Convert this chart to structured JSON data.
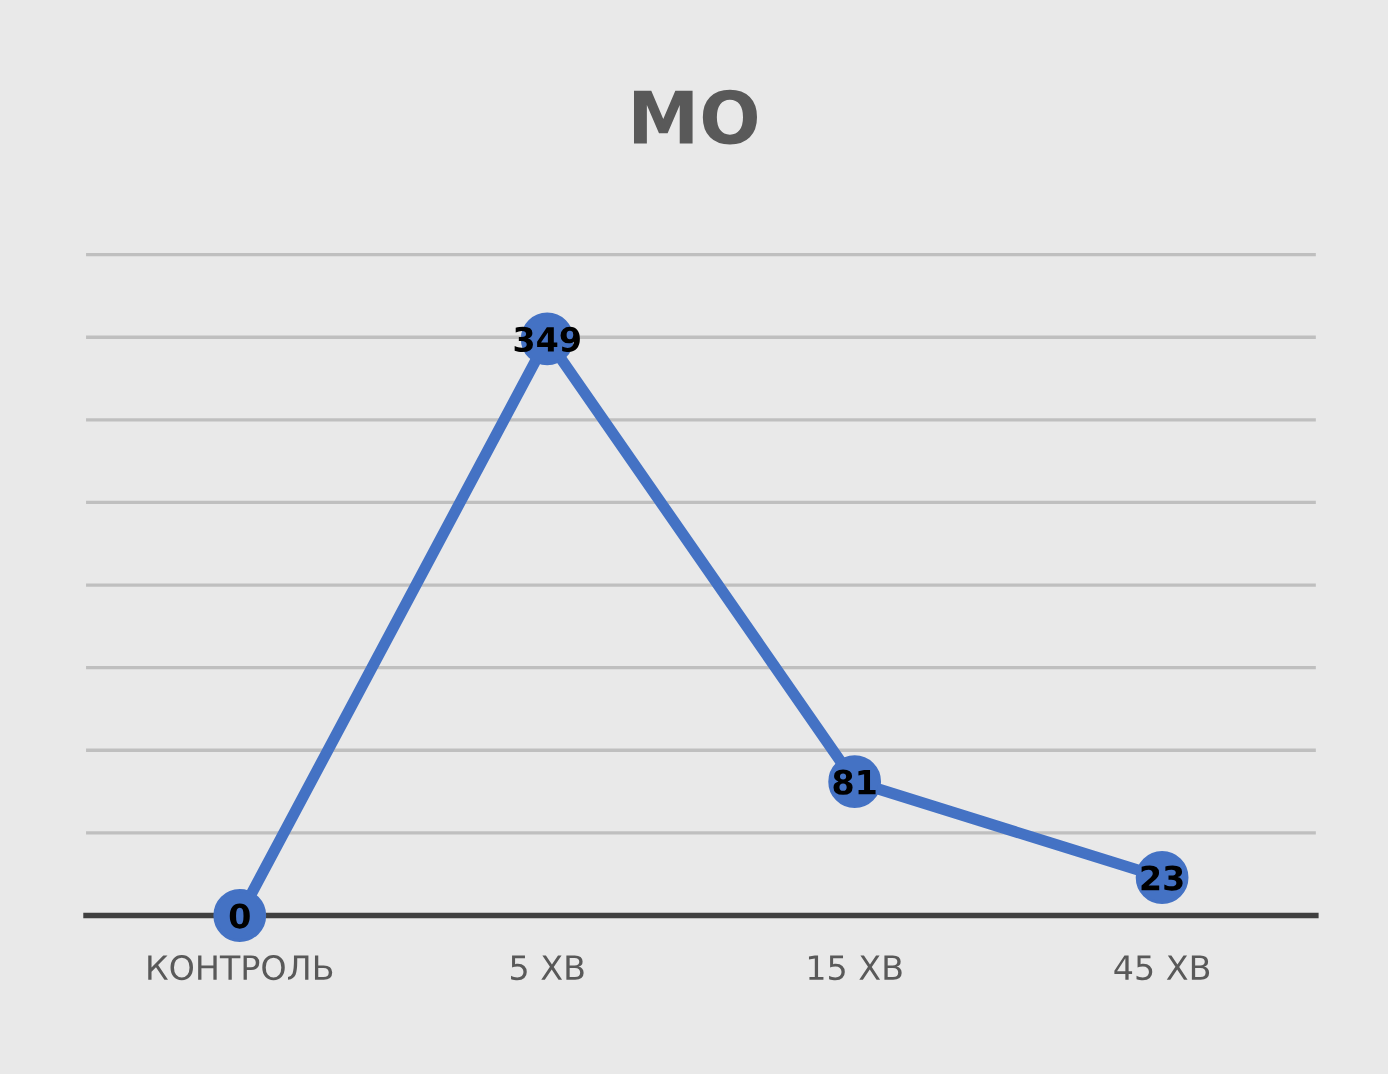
{
  "chart_data": {
    "type": "line",
    "title": "МО",
    "categories": [
      "КОНТРОЛЬ",
      "5 ХВ",
      "15 ХВ",
      "45 ХВ"
    ],
    "series": [
      {
        "color": "#4472c4",
        "values": [
          0,
          349,
          81,
          23
        ]
      }
    ],
    "grid": "y",
    "tick_labels": "x",
    "data_labels": true,
    "marker": "circle",
    "line_style": "solid",
    "legend": false
  }
}
